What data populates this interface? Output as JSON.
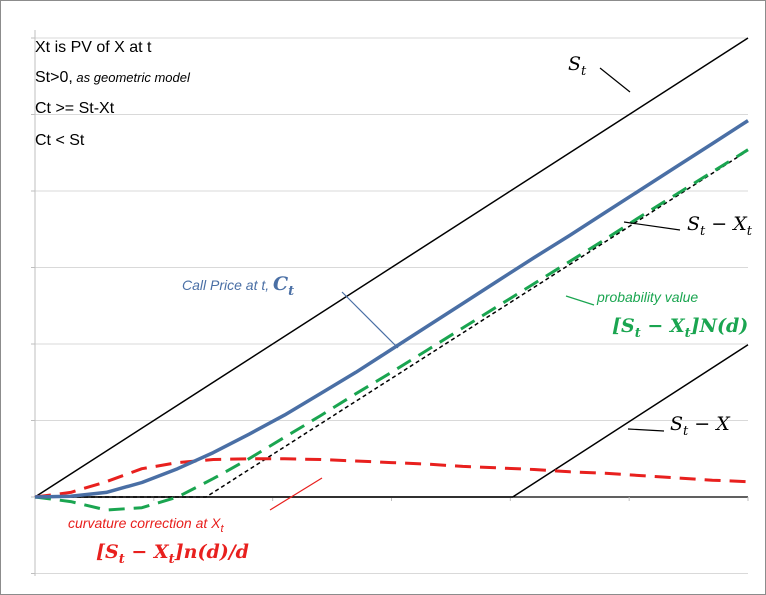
{
  "chart_data": {
    "type": "line",
    "title": "",
    "xlabel": "",
    "ylabel": "",
    "grid": "y-major",
    "info_lines": [
      {
        "main": "Xt is PV of X at t",
        "italic": ""
      },
      {
        "main": "St>0,",
        "italic": " as geometric model"
      },
      {
        "main": "Ct >= St-Xt",
        "italic": ""
      },
      {
        "main": "Ct < St",
        "italic": ""
      }
    ],
    "series": [
      {
        "name": "S_t",
        "color": "#000000",
        "style": "solid",
        "x": [
          0,
          10
        ],
        "y": [
          0,
          6
        ]
      },
      {
        "name": "S_t − X_t",
        "color": "#000000",
        "style": "dotted",
        "x": [
          0,
          2.4,
          10
        ],
        "y": [
          0,
          0,
          4.53
        ]
      },
      {
        "name": "S_t − X",
        "color": "#000000",
        "style": "solid",
        "x": [
          0,
          6.7,
          10
        ],
        "y": [
          0,
          0,
          1.99
        ]
      },
      {
        "name": "Call Price at t, C_t",
        "color": "#4a6fa5",
        "style": "solid-thick",
        "x": [
          0,
          0.5,
          1,
          1.5,
          2,
          2.5,
          3,
          3.5,
          4,
          4.5,
          5,
          5.5,
          6,
          6.5,
          7,
          7.5,
          8,
          8.5,
          9,
          9.5,
          10
        ],
        "y": [
          0,
          0.01,
          0.06,
          0.19,
          0.37,
          0.58,
          0.82,
          1.07,
          1.35,
          1.63,
          1.93,
          2.23,
          2.53,
          2.83,
          3.13,
          3.42,
          3.72,
          4.02,
          4.32,
          4.62,
          4.92
        ]
      },
      {
        "name": "probability value [S_t − X_t]N(d)",
        "color": "#1aa550",
        "style": "dashed",
        "x": [
          0,
          0.5,
          1,
          1.5,
          2,
          2.5,
          3,
          3.5,
          4,
          4.5,
          5,
          5.5,
          6,
          6.5,
          7,
          7.5,
          8,
          8.5,
          9,
          9.5,
          10
        ],
        "y": [
          0,
          -0.06,
          -0.17,
          -0.14,
          0,
          0.24,
          0.5,
          0.78,
          1.06,
          1.35,
          1.63,
          1.92,
          2.21,
          2.5,
          2.79,
          3.08,
          3.37,
          3.67,
          3.96,
          4.25,
          4.54
        ]
      },
      {
        "name": "curvature correction at X_t [S_t − X_t]n(d)/d",
        "color": "#e8201e",
        "style": "dashed",
        "x": [
          0,
          0.5,
          1,
          1.5,
          2,
          2.5,
          3,
          3.5,
          4,
          4.5,
          5,
          5.5,
          6,
          6.5,
          7,
          7.5,
          8,
          8.5,
          9,
          9.5,
          10
        ],
        "y": [
          0,
          0.06,
          0.2,
          0.37,
          0.45,
          0.49,
          0.5,
          0.5,
          0.49,
          0.47,
          0.45,
          0.43,
          0.4,
          0.38,
          0.36,
          0.33,
          0.31,
          0.28,
          0.25,
          0.22,
          0.2
        ]
      }
    ],
    "annotations": {
      "st": {
        "base": "S",
        "sub": "t",
        "rest": ""
      },
      "stxt": {
        "base": "S",
        "sub": "t",
        "rest": " − X",
        "sub2": "t"
      },
      "stx": {
        "base": "S",
        "sub": "t",
        "rest": " − X"
      },
      "call": {
        "label": "Call Price at t, ",
        "sym": "C",
        "sub": "t"
      },
      "prob": {
        "label": "probability value",
        "formula": "[S",
        "sub": "t",
        "mid": " − X",
        "sub2": "t",
        "end": "]N(d)"
      },
      "curv": {
        "label": "curvature correction at X",
        "label_sub": "t",
        "formula": "[S",
        "sub": "t",
        "mid": " − X",
        "sub2": "t",
        "end": "]n(d)/d"
      }
    },
    "colors": {
      "blue": "#4a6fa5",
      "green": "#1aa550",
      "red": "#e8201e",
      "black": "#000000",
      "grid": "#d9d9d9"
    }
  }
}
